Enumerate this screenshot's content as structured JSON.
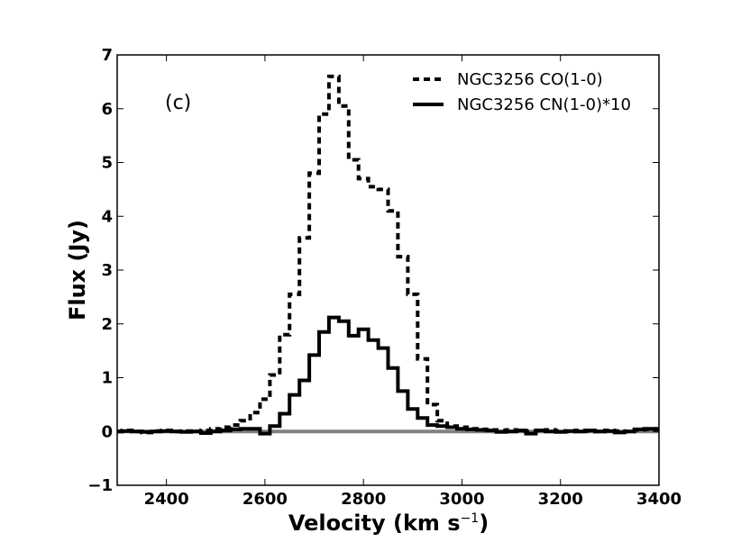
{
  "chart_data": {
    "type": "line",
    "step": true,
    "title": "",
    "annotation": "(c)",
    "xlabel": "Velocity (km s",
    "xlabel_unit_sup": "−1",
    "xlabel_close": ")",
    "ylabel": "Flux (Jy)",
    "xlim": [
      2300,
      3400
    ],
    "ylim": [
      -1,
      7
    ],
    "xticks": [
      2400,
      2600,
      2800,
      3000,
      3200,
      3400
    ],
    "yticks": [
      -1,
      0,
      1,
      2,
      3,
      4,
      5,
      6,
      7
    ],
    "ytick_labels": [
      "−1",
      "0",
      "1",
      "2",
      "3",
      "4",
      "5",
      "6",
      "7"
    ],
    "legend_position": "top-right",
    "zero_line": {
      "y": 0,
      "color": "#808080"
    },
    "series": [
      {
        "name": "NGC3256 CO(1-0)",
        "style": "dashed",
        "color": "#000000",
        "x": [
          2300,
          2320,
          2340,
          2360,
          2380,
          2400,
          2420,
          2440,
          2460,
          2480,
          2500,
          2520,
          2540,
          2560,
          2580,
          2600,
          2620,
          2640,
          2660,
          2680,
          2700,
          2720,
          2740,
          2760,
          2780,
          2800,
          2820,
          2840,
          2860,
          2880,
          2900,
          2920,
          2940,
          2960,
          2980,
          3000,
          3020,
          3040,
          3060,
          3080,
          3100,
          3120,
          3140,
          3160,
          3180,
          3200,
          3220,
          3240,
          3260,
          3280,
          3300,
          3320,
          3340,
          3360,
          3380,
          3400
        ],
        "y": [
          0.0,
          0.02,
          0.0,
          -0.02,
          0.01,
          0.02,
          0.0,
          0.01,
          0.0,
          0.02,
          0.05,
          0.08,
          0.12,
          0.2,
          0.35,
          0.6,
          1.05,
          1.8,
          2.55,
          3.6,
          4.8,
          5.9,
          6.6,
          6.05,
          5.05,
          4.7,
          4.55,
          4.5,
          4.1,
          3.25,
          2.55,
          1.35,
          0.5,
          0.2,
          0.1,
          0.08,
          0.05,
          0.04,
          0.03,
          0.02,
          0.03,
          0.01,
          0.0,
          0.02,
          0.03,
          0.01,
          0.0,
          0.02,
          0.01,
          0.0,
          0.02,
          0.01,
          0.0,
          0.03,
          0.04,
          0.04
        ]
      },
      {
        "name": "NGC3256 CN(1-0)*10",
        "style": "solid",
        "color": "#000000",
        "x": [
          2300,
          2320,
          2340,
          2360,
          2380,
          2400,
          2420,
          2440,
          2460,
          2480,
          2500,
          2520,
          2540,
          2560,
          2580,
          2600,
          2620,
          2640,
          2660,
          2680,
          2700,
          2720,
          2740,
          2760,
          2780,
          2800,
          2820,
          2840,
          2860,
          2880,
          2900,
          2920,
          2940,
          2960,
          2980,
          3000,
          3020,
          3040,
          3060,
          3080,
          3100,
          3120,
          3140,
          3160,
          3180,
          3200,
          3220,
          3240,
          3260,
          3280,
          3300,
          3320,
          3340,
          3360,
          3380,
          3400
        ],
        "y": [
          0.0,
          0.01,
          0.0,
          -0.01,
          0.0,
          0.01,
          0.0,
          -0.01,
          0.0,
          -0.03,
          0.0,
          0.02,
          0.04,
          0.05,
          0.05,
          -0.04,
          0.1,
          0.33,
          0.68,
          0.95,
          1.42,
          1.85,
          2.12,
          2.05,
          1.78,
          1.9,
          1.7,
          1.55,
          1.18,
          0.75,
          0.42,
          0.25,
          0.12,
          0.1,
          0.08,
          0.05,
          0.04,
          0.03,
          0.02,
          -0.01,
          0.0,
          0.02,
          -0.04,
          0.02,
          0.0,
          -0.01,
          0.01,
          0.0,
          0.02,
          0.0,
          0.01,
          -0.02,
          0.0,
          0.04,
          0.05,
          0.05
        ]
      }
    ]
  }
}
